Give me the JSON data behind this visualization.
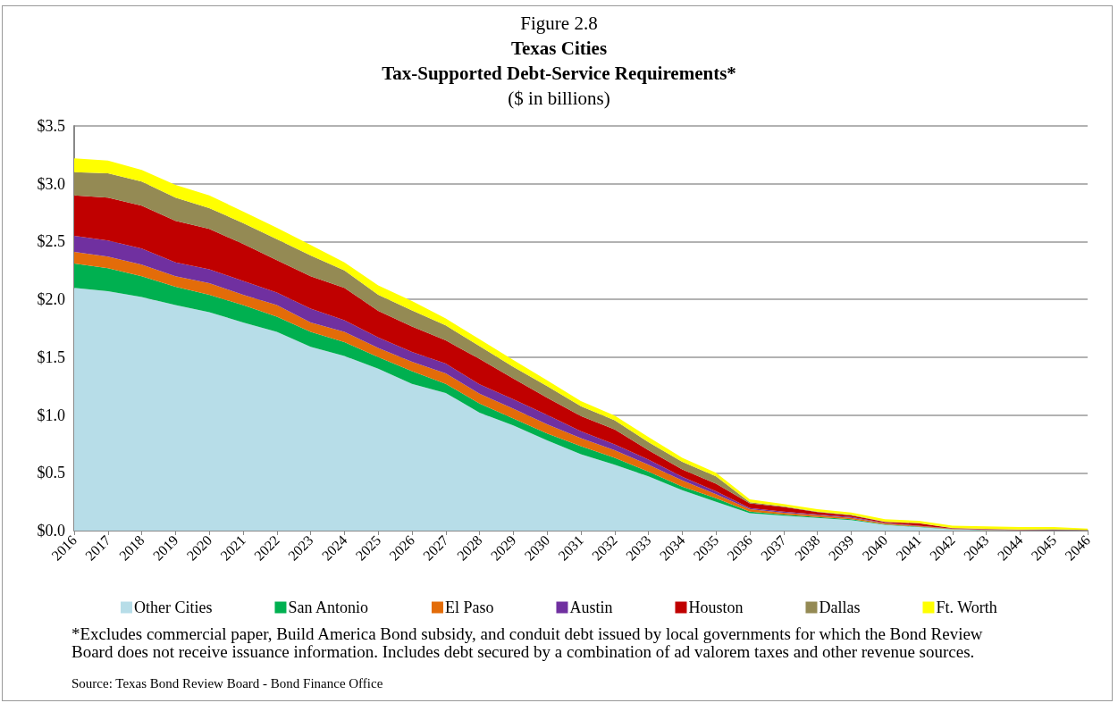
{
  "chart_data": {
    "type": "area",
    "title": "Figure 2.8\nTexas Cities\nTax-Supported Debt-Service Requirements*",
    "subtitle": "($ in billions)",
    "categories": [
      "2016",
      "2017",
      "2018",
      "2019",
      "2020",
      "2021",
      "2022",
      "2023",
      "2024",
      "2025",
      "2026",
      "2027",
      "2028",
      "2029",
      "2030",
      "2031",
      "2032",
      "2033",
      "2034",
      "2035",
      "2036",
      "2037",
      "2038",
      "2039",
      "2040",
      "2041",
      "2042",
      "2043",
      "2044",
      "2045",
      "2046"
    ],
    "series": [
      {
        "name": "Other Cities",
        "color": "#b7dde8",
        "values": [
          2.1,
          2.07,
          2.02,
          1.95,
          1.89,
          1.8,
          1.72,
          1.59,
          1.51,
          1.4,
          1.27,
          1.19,
          1.02,
          0.91,
          0.78,
          0.66,
          0.57,
          0.47,
          0.35,
          0.25,
          0.15,
          0.13,
          0.11,
          0.09,
          0.05,
          0.03,
          0.01,
          0.005,
          0.003,
          0.002,
          0.001
        ]
      },
      {
        "name": "San Antonio",
        "color": "#00b050",
        "values": [
          0.21,
          0.2,
          0.18,
          0.16,
          0.15,
          0.15,
          0.13,
          0.13,
          0.12,
          0.1,
          0.11,
          0.08,
          0.08,
          0.06,
          0.06,
          0.07,
          0.06,
          0.04,
          0.03,
          0.03,
          0.015,
          0.01,
          0.008,
          0.008,
          0.005,
          0.004,
          0.002,
          0.001,
          0.001,
          0.001,
          0
        ]
      },
      {
        "name": "El Paso",
        "color": "#e36c09",
        "values": [
          0.1,
          0.1,
          0.1,
          0.09,
          0.1,
          0.09,
          0.1,
          0.08,
          0.09,
          0.08,
          0.08,
          0.09,
          0.085,
          0.085,
          0.08,
          0.07,
          0.065,
          0.06,
          0.055,
          0.035,
          0.02,
          0.015,
          0.015,
          0.013,
          0.008,
          0.006,
          0.003,
          0.002,
          0.001,
          0.001,
          0.001
        ]
      },
      {
        "name": "Austin",
        "color": "#7030a0",
        "values": [
          0.14,
          0.14,
          0.14,
          0.12,
          0.12,
          0.12,
          0.11,
          0.12,
          0.1,
          0.09,
          0.085,
          0.085,
          0.08,
          0.08,
          0.08,
          0.06,
          0.05,
          0.045,
          0.03,
          0.025,
          0.01,
          0.01,
          0.007,
          0.006,
          0.004,
          0.003,
          0.002,
          0.001,
          0.001,
          0.001,
          0
        ]
      },
      {
        "name": "Houston",
        "color": "#c00000",
        "values": [
          0.35,
          0.37,
          0.37,
          0.36,
          0.35,
          0.32,
          0.28,
          0.28,
          0.28,
          0.23,
          0.22,
          0.2,
          0.22,
          0.18,
          0.15,
          0.13,
          0.13,
          0.08,
          0.065,
          0.065,
          0.04,
          0.04,
          0.02,
          0.015,
          0.008,
          0.02,
          0.004,
          0.005,
          0.002,
          0.002,
          0.001
        ]
      },
      {
        "name": "Dallas",
        "color": "#948a54",
        "values": [
          0.2,
          0.21,
          0.21,
          0.2,
          0.18,
          0.18,
          0.18,
          0.18,
          0.15,
          0.14,
          0.14,
          0.13,
          0.11,
          0.1,
          0.1,
          0.085,
          0.08,
          0.07,
          0.065,
          0.065,
          0.01,
          0.005,
          0.005,
          0.005,
          0.003,
          0.002,
          0.002,
          0.002,
          0.002,
          0.004,
          0.002
        ]
      },
      {
        "name": "Ft. Worth",
        "color": "#ffff00",
        "values": [
          0.12,
          0.11,
          0.1,
          0.11,
          0.11,
          0.1,
          0.1,
          0.09,
          0.07,
          0.08,
          0.08,
          0.06,
          0.06,
          0.06,
          0.05,
          0.045,
          0.04,
          0.045,
          0.035,
          0.03,
          0.025,
          0.02,
          0.02,
          0.02,
          0.02,
          0.02,
          0.02,
          0.02,
          0.02,
          0.02,
          0.012
        ]
      }
    ],
    "stacked": true,
    "ylim": [
      0,
      3.5
    ],
    "yticks": [
      {
        "value": 0,
        "label": "$0.0"
      },
      {
        "value": 0.5,
        "label": "$0.5"
      },
      {
        "value": 1,
        "label": "$1.0"
      },
      {
        "value": 1.5,
        "label": "$1.5"
      },
      {
        "value": 2,
        "label": "$2.0"
      },
      {
        "value": 2.5,
        "label": "$2.5"
      },
      {
        "value": 3,
        "label": "$3.0"
      },
      {
        "value": 3.5,
        "label": "$3.5"
      }
    ],
    "grid": "y",
    "legend": "bottom",
    "annotations": [
      "*Excludes commercial paper, Build America Bond subsidy, and conduit debt issued by local governments for which the Bond Review Board does not receive issuance information. Includes debt secured by a combination of ad valorem taxes and other revenue sources.",
      "Source: Texas Bond Review Board - Bond Finance Office"
    ]
  }
}
